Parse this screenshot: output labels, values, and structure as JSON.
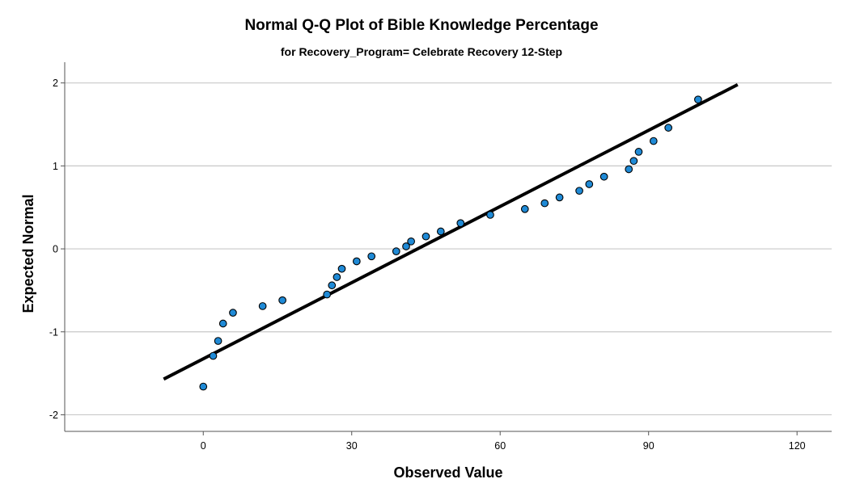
{
  "chart_data": {
    "type": "scatter",
    "title": "Normal Q-Q Plot of Bible Knowledge Percentage",
    "subtitle": "for Recovery_Program= Celebrate Recovery 12-Step",
    "xlabel": "Observed Value",
    "ylabel": "Expected Normal",
    "xlim": [
      -28,
      127
    ],
    "ylim": [
      -2.2,
      2.25
    ],
    "x_ticks": [
      0,
      30,
      60,
      90,
      120
    ],
    "y_ticks": [
      2,
      1,
      0,
      -1,
      -2
    ],
    "x_tick_labels": [
      "0",
      "30",
      "60",
      "90",
      "120"
    ],
    "y_tick_labels": [
      "2",
      "1",
      "0",
      "-1",
      "-2"
    ],
    "grid": "horizontal",
    "point_color": "#1f8ad6",
    "line_color": "#000000",
    "reference_line": {
      "x": [
        -8,
        108
      ],
      "y": [
        -1.57,
        1.98
      ]
    },
    "series": [
      {
        "name": "Observed",
        "x": [
          0,
          2,
          3,
          4,
          6,
          12,
          16,
          25,
          26,
          27,
          28,
          31,
          34,
          39,
          41,
          42,
          45,
          48,
          52,
          58,
          65,
          69,
          72,
          76,
          78,
          81,
          86,
          87,
          88,
          91,
          94,
          100
        ],
        "y": [
          -1.66,
          -1.29,
          -1.11,
          -0.9,
          -0.77,
          -0.69,
          -0.62,
          -0.55,
          -0.44,
          -0.34,
          -0.24,
          -0.15,
          -0.09,
          -0.03,
          0.03,
          0.09,
          0.15,
          0.21,
          0.31,
          0.41,
          0.48,
          0.55,
          0.62,
          0.7,
          0.78,
          0.87,
          0.96,
          1.06,
          1.17,
          1.3,
          1.46,
          1.8
        ]
      }
    ]
  }
}
